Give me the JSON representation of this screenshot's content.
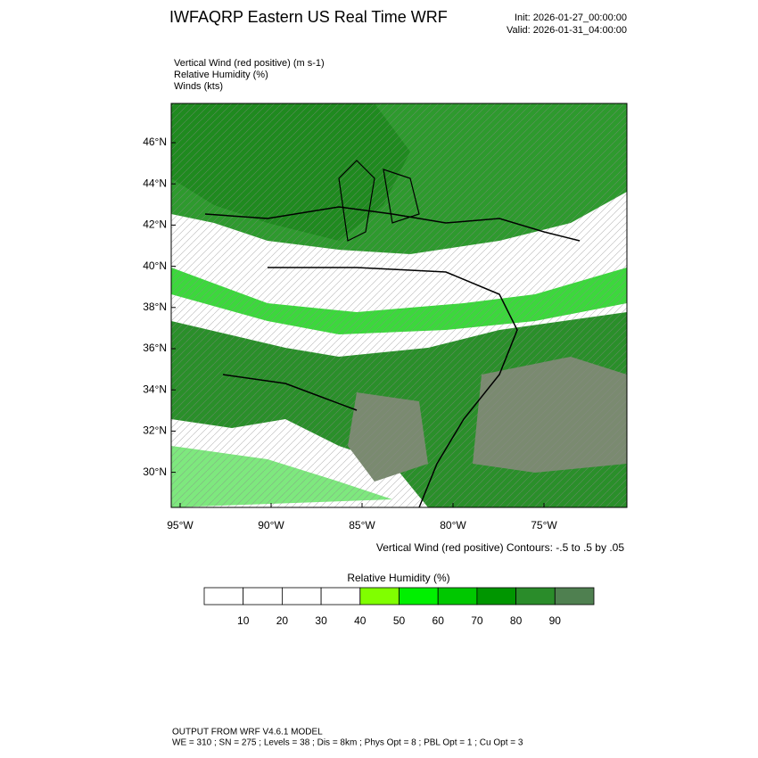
{
  "header": {
    "title": "IWFAQRP Eastern US Real Time WRF",
    "init": "Init: 2026-01-27_00:00:00",
    "valid": "Valid: 2026-01-31_04:00:00"
  },
  "fields": [
    "Vertical Wind (red positive)   (m s-1)",
    "Relative Humidity   (%)",
    "Winds   (kts)"
  ],
  "map": {
    "lat_labels": [
      "46°N",
      "44°N",
      "42°N",
      "40°N",
      "38°N",
      "36°N",
      "34°N",
      "32°N",
      "30°N"
    ],
    "lon_labels": [
      "95°W",
      "90°W",
      "85°W",
      "80°W",
      "75°W"
    ],
    "contour_note": "Vertical Wind (red positive) Contours: -.5 to .5 by .05"
  },
  "colorbar": {
    "title": "Relative Humidity   (%)",
    "colors": [
      "#ffffff",
      "#ffffff",
      "#ffffff",
      "#ffffff",
      "#80ff00",
      "#00f000",
      "#00c800",
      "#009600",
      "#2a8c2a",
      "#4f8050"
    ],
    "labels": [
      "10",
      "20",
      "30",
      "40",
      "50",
      "60",
      "70",
      "80",
      "90"
    ]
  },
  "footer": [
    "OUTPUT FROM WRF V4.6.1 MODEL",
    "WE = 310 ; SN = 275 ; Levels = 38 ; Dis = 8km ; Phys Opt = 8 ; PBL Opt = 1 ; Cu Opt = 3"
  ]
}
